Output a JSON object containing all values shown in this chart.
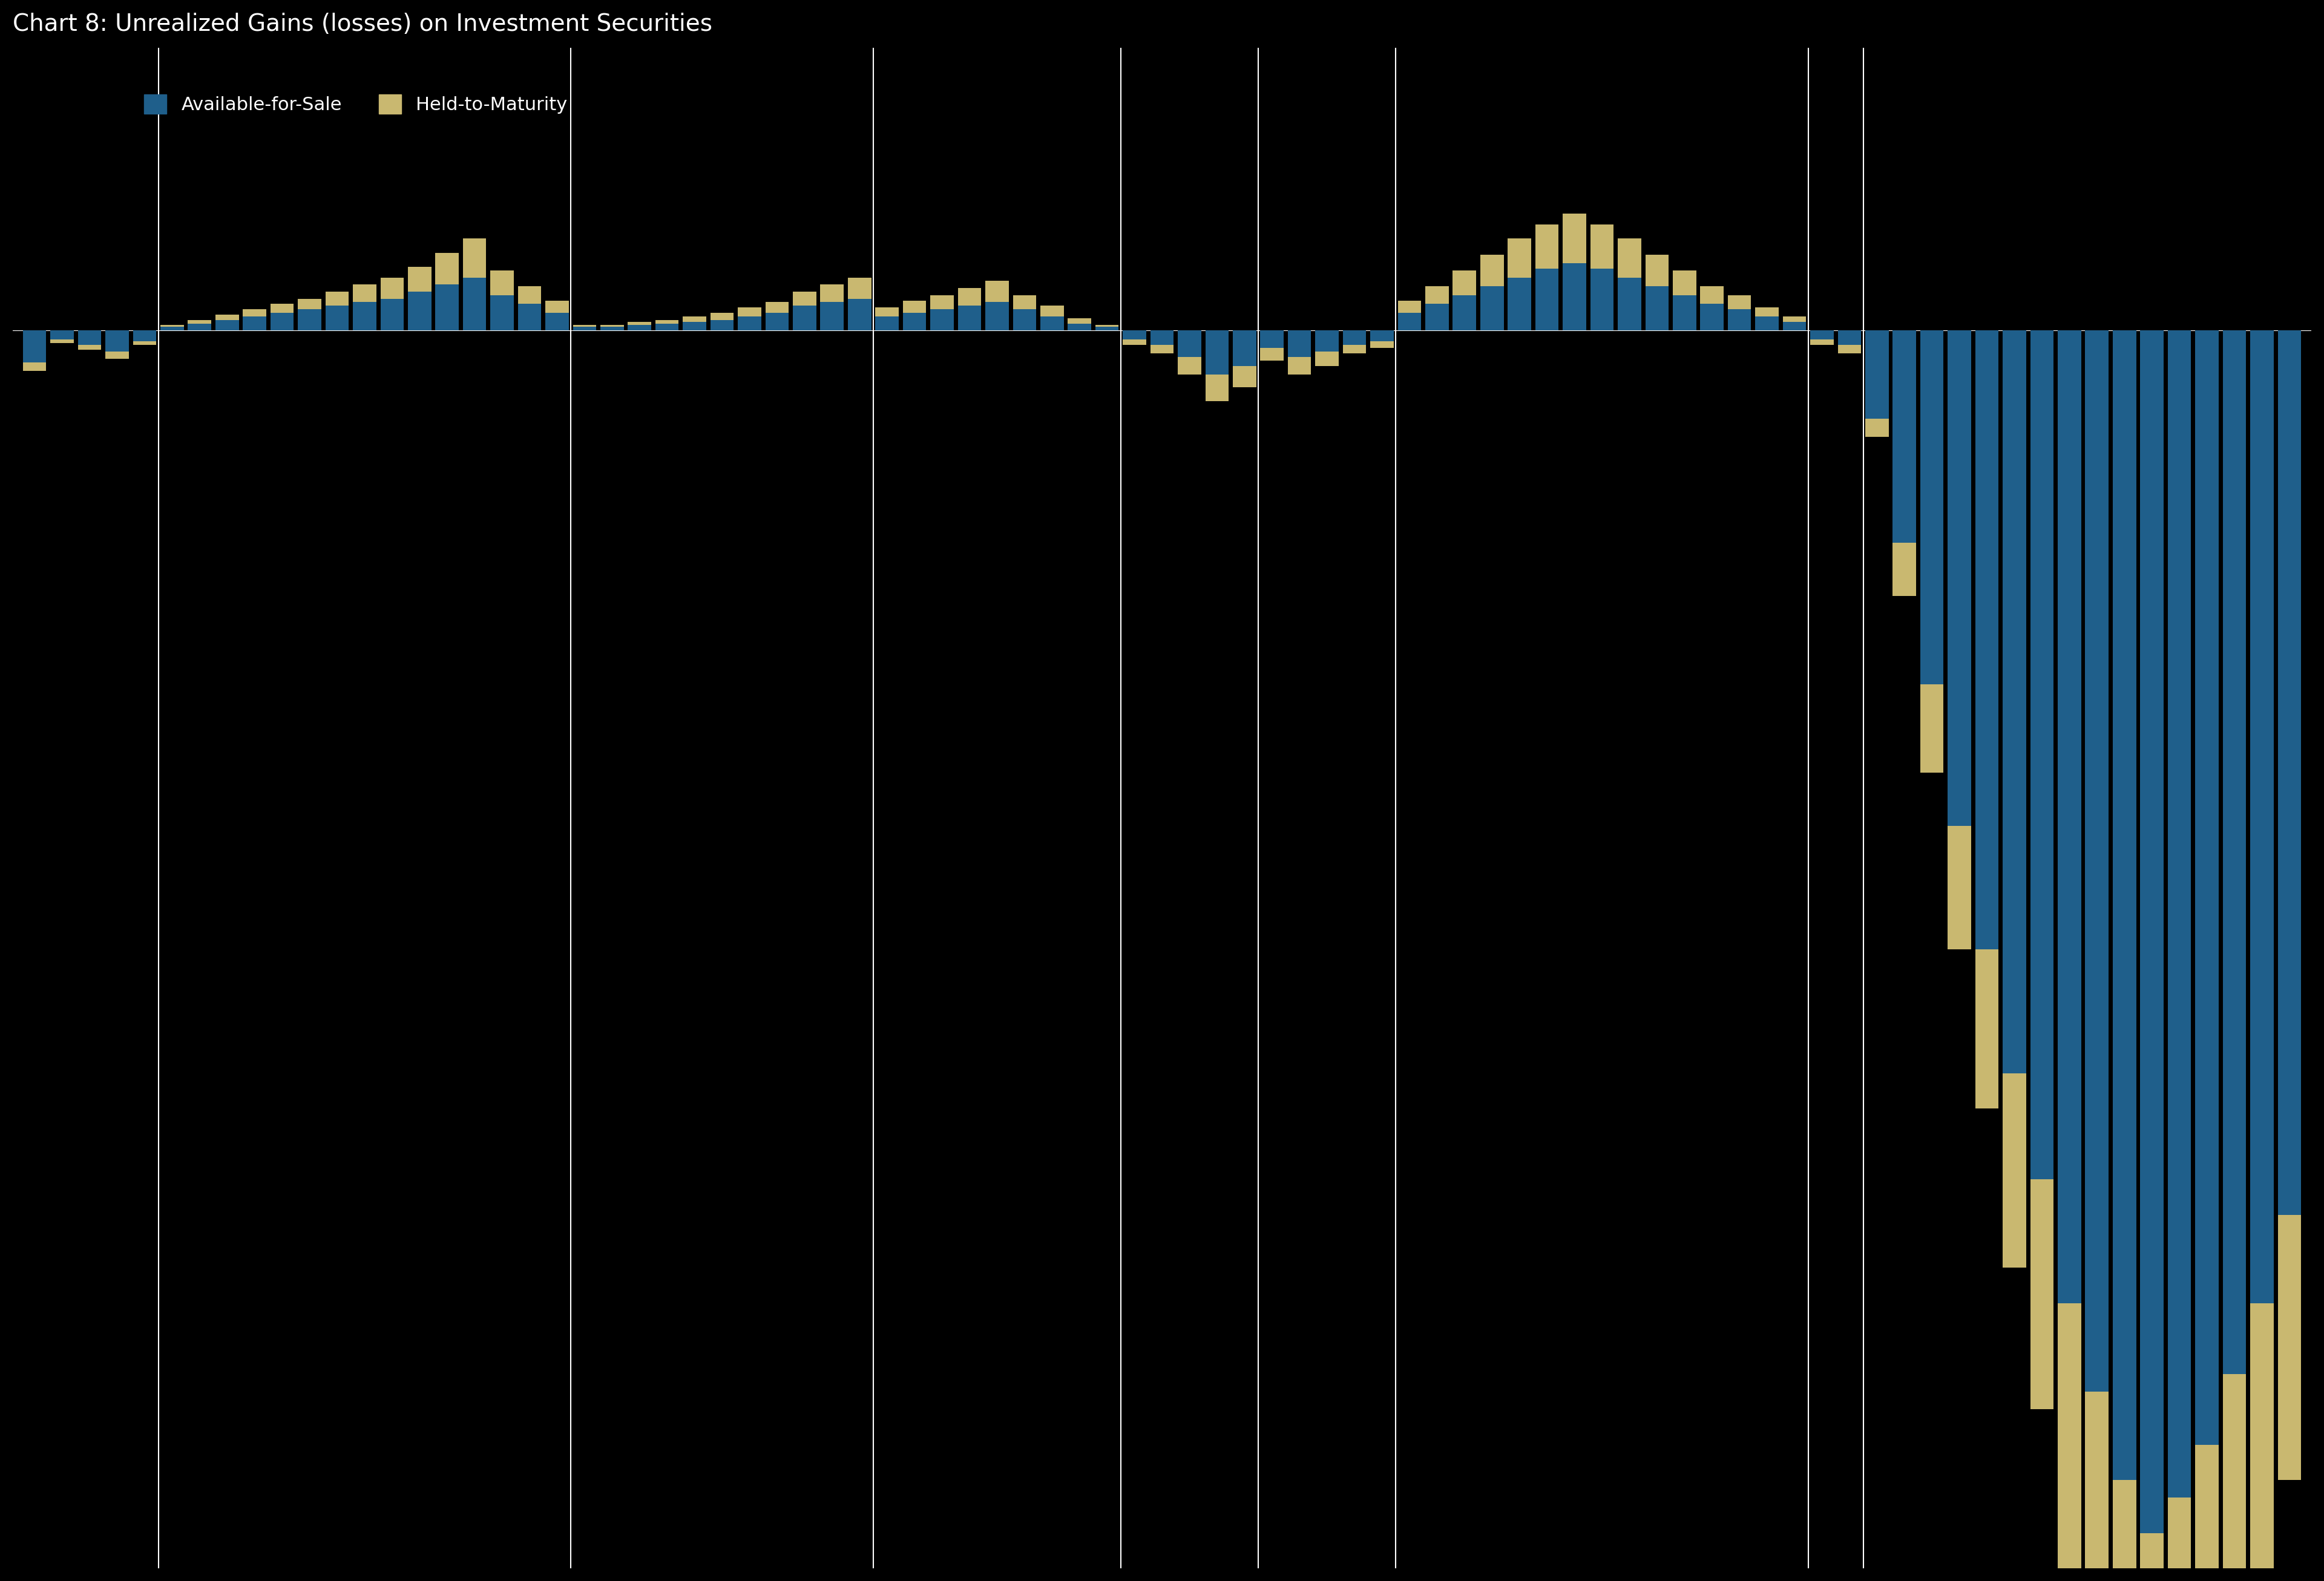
{
  "title": "Chart 8: Unrealized Gains (losses) on Investment Securities",
  "background_color": "#000000",
  "bar_color_1": "#1F5F8B",
  "bar_color_2": "#C9B870",
  "legend_label_1": "Available-for-Sale",
  "legend_label_2": "Held-to-Maturity",
  "ylabel": "",
  "ylim": [
    -700,
    160
  ],
  "series1": [
    -18,
    -5,
    -8,
    -12,
    -6,
    2,
    4,
    6,
    8,
    10,
    12,
    14,
    16,
    18,
    22,
    26,
    30,
    20,
    15,
    10,
    2,
    2,
    3,
    4,
    5,
    6,
    8,
    10,
    14,
    16,
    18,
    8,
    10,
    12,
    14,
    16,
    12,
    8,
    4,
    2,
    -5,
    -8,
    -15,
    -25,
    -20,
    -10,
    -15,
    -12,
    -8,
    -6,
    10,
    15,
    20,
    25,
    30,
    35,
    38,
    35,
    30,
    25,
    20,
    15,
    12,
    8,
    5,
    -5,
    -8,
    -50,
    -120,
    -200,
    -280,
    -350,
    -420,
    -480,
    -550,
    -600,
    -650,
    -680,
    -660,
    -630,
    -590,
    -550,
    -500
  ],
  "series2": [
    -5,
    -2,
    -3,
    -4,
    -2,
    1,
    2,
    3,
    4,
    5,
    6,
    8,
    10,
    12,
    14,
    18,
    22,
    14,
    10,
    7,
    1,
    1,
    2,
    2,
    3,
    4,
    5,
    6,
    8,
    10,
    12,
    5,
    7,
    8,
    10,
    12,
    8,
    6,
    3,
    1,
    -3,
    -5,
    -10,
    -15,
    -12,
    -7,
    -10,
    -8,
    -5,
    -4,
    7,
    10,
    14,
    18,
    22,
    25,
    28,
    25,
    22,
    18,
    14,
    10,
    8,
    5,
    3,
    -3,
    -5,
    -10,
    -30,
    -50,
    -70,
    -90,
    -110,
    -130,
    -150,
    -170,
    -190,
    -200,
    -190,
    -180,
    -170,
    -160,
    -150
  ],
  "grid_line_positions": [
    5,
    20,
    31,
    40,
    45,
    50,
    65,
    67
  ],
  "title_fontsize": 28,
  "label_fontsize": 22,
  "tick_fontsize": 18
}
